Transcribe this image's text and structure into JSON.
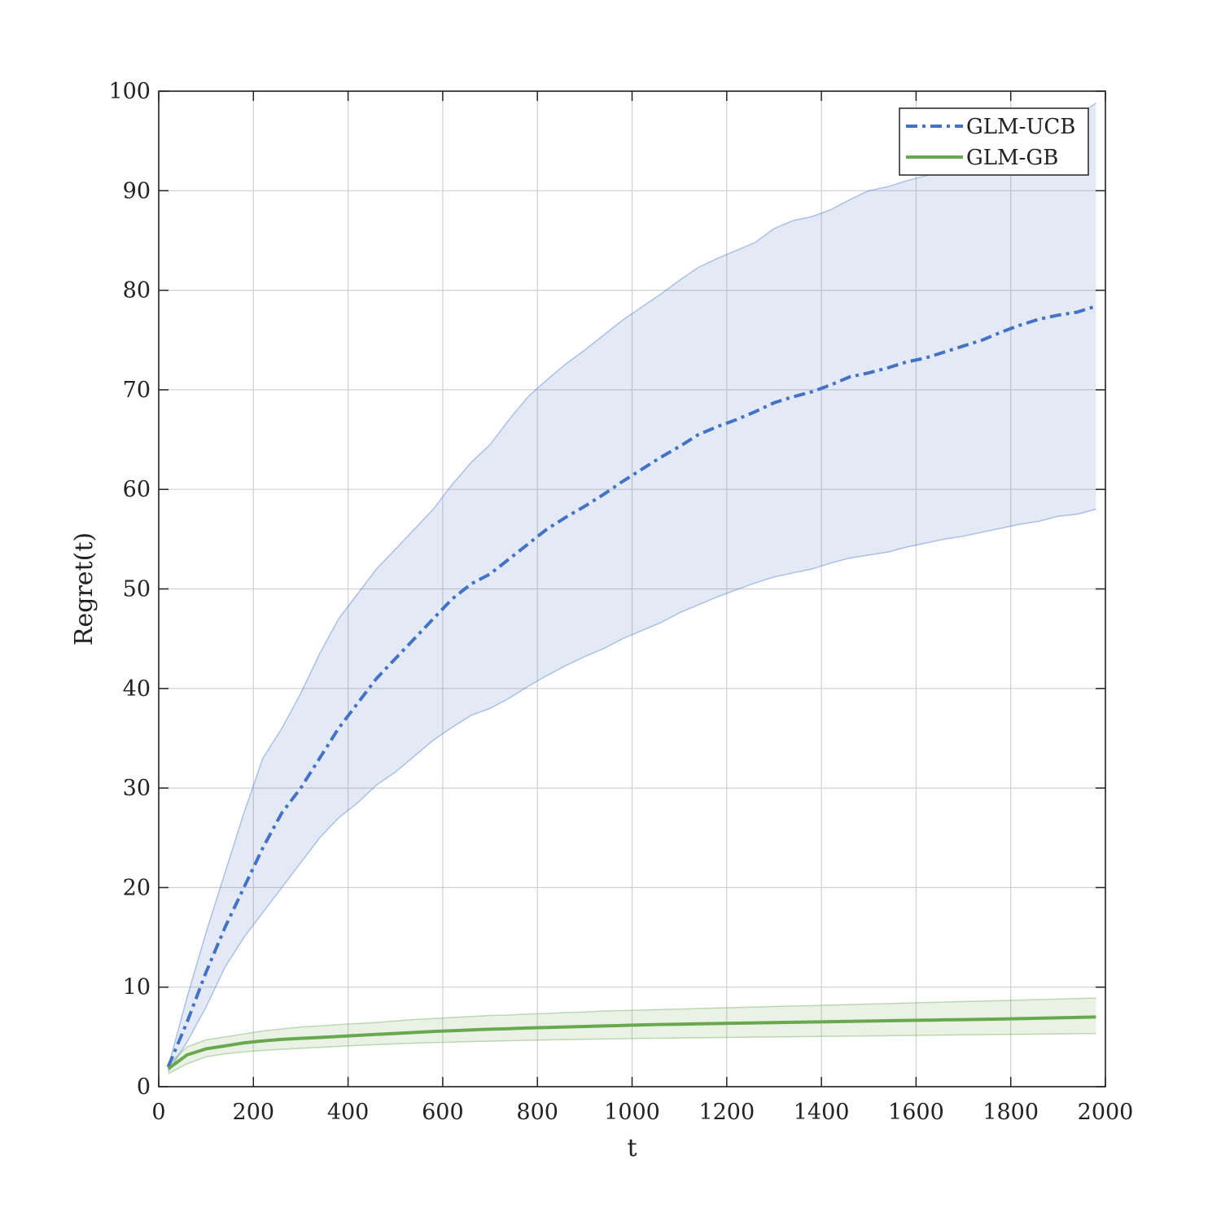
{
  "chart_data": {
    "type": "line",
    "title": "",
    "xlabel": "t",
    "ylabel": "Regret(t)",
    "xlim": [
      0,
      2000
    ],
    "ylim": [
      0,
      100
    ],
    "xticks": [
      0,
      200,
      400,
      600,
      800,
      1000,
      1200,
      1400,
      1600,
      1800,
      2000
    ],
    "yticks": [
      0,
      10,
      20,
      30,
      40,
      50,
      60,
      70,
      80,
      90,
      100
    ],
    "grid": true,
    "legend_position": "top-right",
    "series": [
      {
        "name": "GLM-UCB",
        "color": "#4472C4",
        "line_style": "dash-dot",
        "x": [
          20,
          60,
          100,
          140,
          180,
          220,
          260,
          300,
          340,
          380,
          420,
          460,
          500,
          540,
          580,
          620,
          660,
          700,
          740,
          780,
          820,
          860,
          900,
          940,
          980,
          1020,
          1060,
          1100,
          1140,
          1180,
          1220,
          1260,
          1300,
          1340,
          1380,
          1420,
          1460,
          1500,
          1540,
          1580,
          1620,
          1660,
          1700,
          1740,
          1780,
          1820,
          1860,
          1900,
          1940,
          1980
        ],
        "y": [
          2,
          6.5,
          11.5,
          16,
          20,
          24,
          27.5,
          30,
          33,
          36,
          38.5,
          41,
          43,
          45,
          47,
          49,
          50.5,
          51.5,
          53,
          54.5,
          56,
          57.2,
          58.3,
          59.5,
          60.8,
          62,
          63.2,
          64.3,
          65.5,
          66.3,
          67,
          67.8,
          68.7,
          69.3,
          69.8,
          70.5,
          71.3,
          71.7,
          72.2,
          72.8,
          73.2,
          73.8,
          74.4,
          75,
          75.8,
          76.5,
          77.1,
          77.5,
          77.8,
          78.4
        ],
        "upper": [
          2,
          9,
          15.5,
          21.5,
          27.5,
          33,
          36,
          39.5,
          43.5,
          47,
          49.5,
          52,
          54,
          56,
          58,
          60.5,
          62.7,
          64.5,
          67,
          69.3,
          71,
          72.6,
          74,
          75.5,
          77,
          78.3,
          79.6,
          81,
          82.3,
          83.2,
          84,
          84.8,
          86.2,
          87,
          87.4,
          88.1,
          89.1,
          90,
          90.4,
          91,
          91.5,
          92,
          92.5,
          93,
          93.5,
          94,
          95,
          96.5,
          97.5,
          98.8
        ],
        "lower": [
          1.5,
          4.5,
          8,
          12,
          15,
          17.5,
          20,
          22.5,
          25,
          27,
          28.5,
          30.3,
          31.6,
          33.2,
          34.8,
          36.1,
          37.3,
          38,
          39,
          40.2,
          41.3,
          42.3,
          43.2,
          44,
          45,
          45.8,
          46.6,
          47.6,
          48.4,
          49.2,
          49.9,
          50.6,
          51.2,
          51.6,
          52,
          52.6,
          53.1,
          53.4,
          53.7,
          54.2,
          54.6,
          55,
          55.3,
          55.7,
          56.1,
          56.5,
          56.8,
          57.3,
          57.5,
          58
        ]
      },
      {
        "name": "GLM-GB",
        "color": "#6AA84F",
        "line_style": "solid",
        "x": [
          20,
          60,
          100,
          140,
          180,
          220,
          260,
          300,
          340,
          380,
          420,
          460,
          500,
          540,
          580,
          620,
          660,
          700,
          740,
          780,
          820,
          860,
          900,
          940,
          980,
          1020,
          1060,
          1100,
          1140,
          1180,
          1220,
          1260,
          1300,
          1340,
          1380,
          1420,
          1460,
          1500,
          1540,
          1580,
          1620,
          1660,
          1700,
          1740,
          1780,
          1820,
          1860,
          1900,
          1940,
          1980
        ],
        "y": [
          1.8,
          3.2,
          3.8,
          4.1,
          4.4,
          4.6,
          4.75,
          4.85,
          4.95,
          5.05,
          5.15,
          5.25,
          5.35,
          5.45,
          5.55,
          5.62,
          5.7,
          5.77,
          5.83,
          5.9,
          5.95,
          6.0,
          6.05,
          6.1,
          6.15,
          6.2,
          6.25,
          6.28,
          6.32,
          6.35,
          6.38,
          6.41,
          6.44,
          6.47,
          6.5,
          6.53,
          6.56,
          6.59,
          6.62,
          6.65,
          6.68,
          6.71,
          6.74,
          6.77,
          6.8,
          6.84,
          6.88,
          6.92,
          6.96,
          7.0
        ],
        "upper": [
          2.2,
          4.0,
          4.7,
          5.0,
          5.3,
          5.6,
          5.8,
          6.0,
          6.1,
          6.25,
          6.35,
          6.45,
          6.6,
          6.75,
          6.85,
          6.95,
          7.05,
          7.15,
          7.2,
          7.3,
          7.35,
          7.45,
          7.5,
          7.6,
          7.65,
          7.7,
          7.75,
          7.8,
          7.85,
          7.9,
          7.95,
          8.0,
          8.05,
          8.1,
          8.15,
          8.2,
          8.25,
          8.3,
          8.35,
          8.4,
          8.45,
          8.5,
          8.55,
          8.6,
          8.65,
          8.7,
          8.75,
          8.8,
          8.85,
          8.9
        ],
        "lower": [
          1.3,
          2.3,
          3.0,
          3.3,
          3.5,
          3.65,
          3.75,
          3.85,
          3.95,
          4.05,
          4.15,
          4.22,
          4.3,
          4.37,
          4.43,
          4.48,
          4.53,
          4.57,
          4.62,
          4.66,
          4.7,
          4.73,
          4.76,
          4.79,
          4.82,
          4.85,
          4.87,
          4.9,
          4.92,
          4.94,
          4.96,
          4.98,
          5.0,
          5.02,
          5.04,
          5.06,
          5.08,
          5.1,
          5.12,
          5.14,
          5.16,
          5.18,
          5.2,
          5.22,
          5.24,
          5.26,
          5.28,
          5.3,
          5.32,
          5.34
        ]
      }
    ]
  }
}
